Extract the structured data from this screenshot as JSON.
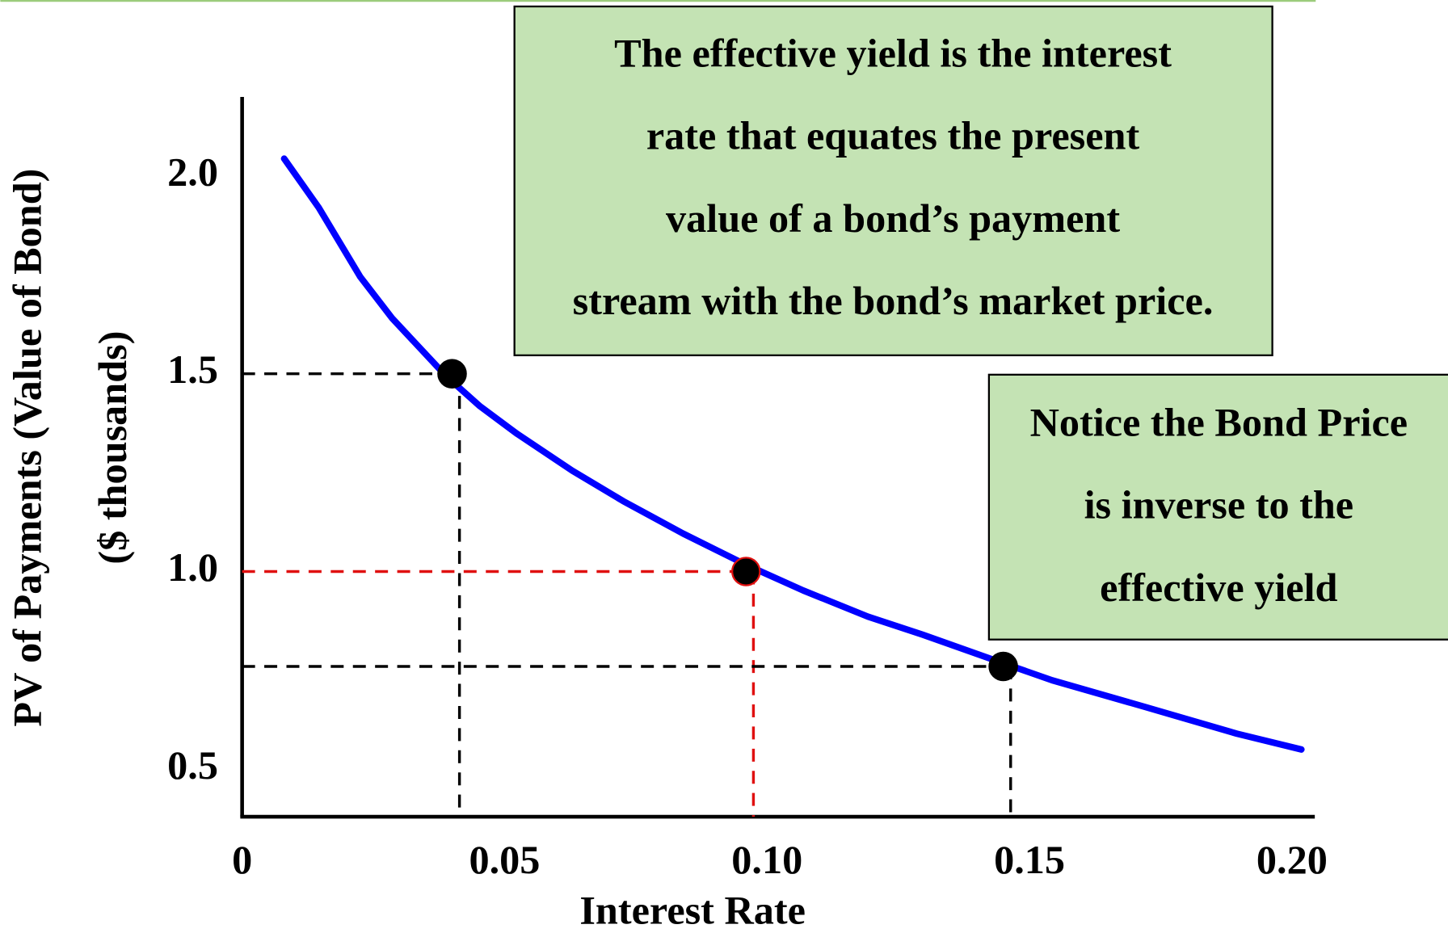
{
  "chart_data": {
    "type": "line",
    "xlabel": "Interest Rate",
    "ylabel": [
      "PV of Payments (Value of Bond)",
      "($ thousands)"
    ],
    "x": [
      0.008,
      0.0146,
      0.0225,
      0.0286,
      0.0388,
      0.0453,
      0.0524,
      0.0629,
      0.0726,
      0.084,
      0.096,
      0.1069,
      0.1192,
      0.1297,
      0.1446,
      0.1543,
      0.1719,
      0.1895,
      0.2018
    ],
    "series": [
      {
        "color": "#0000ff",
        "values": [
          2.044,
          1.92,
          1.745,
          1.64,
          1.495,
          1.418,
          1.348,
          1.255,
          1.178,
          1.096,
          1.017,
          0.952,
          0.886,
          0.84,
          0.77,
          0.725,
          0.658,
          0.59,
          0.55
        ]
      }
    ],
    "points": {
      "x": [
        0.04,
        0.096,
        0.145
      ],
      "y": [
        1.5,
        1.0,
        0.76
      ],
      "guide_colors": [
        "#000000",
        "#e01010",
        "#000000"
      ]
    },
    "xlim": [
      0,
      0.204
    ],
    "ylim": [
      0.38,
      2.2
    ],
    "xticks": [
      0,
      0.05,
      {
        "value": 0.1,
        "label": "0.10"
      },
      0.15,
      {
        "value": 0.2,
        "label": "0.20"
      }
    ],
    "yticks": [
      {
        "value": 0.5,
        "label": "0.5"
      },
      {
        "value": 1,
        "label": "1.0"
      },
      {
        "value": 1.5,
        "label": "1.5"
      },
      {
        "value": 2,
        "label": "2.0"
      }
    ],
    "annotations": [
      {
        "lines": [
          "The effective yield is the interest",
          "rate that equates the present",
          "value of a bond’s payment",
          "stream with the bond’s market price."
        ]
      },
      {
        "lines": [
          "Notice the Bond Price",
          "is inverse to the",
          "effective yield"
        ]
      }
    ]
  }
}
